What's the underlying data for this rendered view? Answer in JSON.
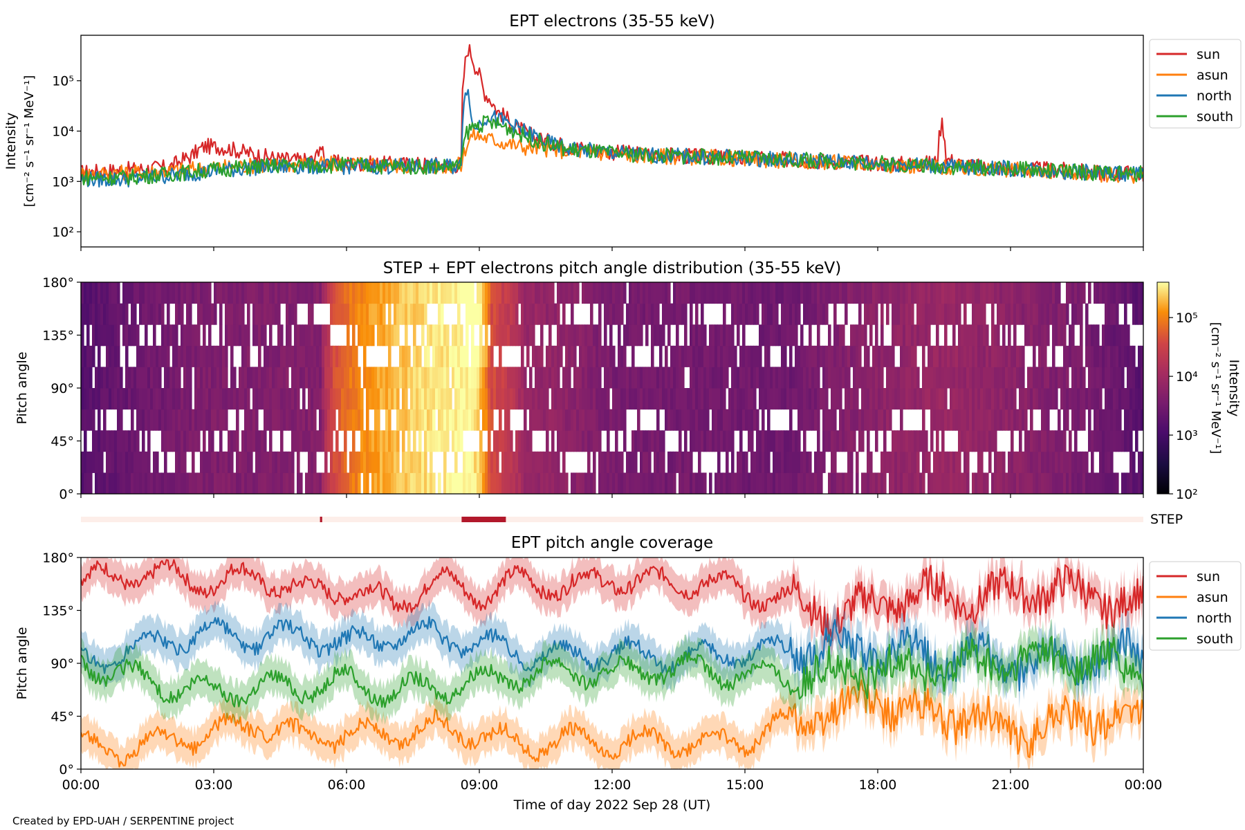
{
  "footer": "Created by EPD-UAH / SERPENTINE project",
  "colors": {
    "sun": "#d62728",
    "asun": "#ff7f0e",
    "north": "#1f77b4",
    "south": "#2ca02c",
    "step_bar": "#b2182b",
    "step_bar_bg": "#fdeee9"
  },
  "chart_data": [
    {
      "type": "line",
      "title": "EPT electrons (35-55 keV)",
      "ylabel_line1": "Intensity",
      "ylabel_line2": "[cm⁻² s⁻¹ sr⁻¹ MeV⁻¹]",
      "yscale": "log",
      "ylim": [
        50,
        800000
      ],
      "yticks": [
        100,
        1000,
        10000,
        100000
      ],
      "yticklabels": [
        "10²",
        "10³",
        "10⁴",
        "10⁵"
      ],
      "xlim_hours": [
        0,
        24
      ],
      "legend_position": "outside right",
      "series": [
        {
          "name": "sun",
          "key": "sun",
          "points": [
            [
              0,
              1500
            ],
            [
              0.5,
              1600
            ],
            [
              1,
              1700
            ],
            [
              1.5,
              1800
            ],
            [
              2,
              1900
            ],
            [
              2.5,
              3200
            ],
            [
              2.8,
              5000
            ],
            [
              3.2,
              4800
            ],
            [
              3.6,
              4000
            ],
            [
              4,
              3300
            ],
            [
              4.5,
              2800
            ],
            [
              5,
              2600
            ],
            [
              5.3,
              2700
            ],
            [
              5.4,
              5500
            ],
            [
              5.5,
              2400
            ],
            [
              6,
              2300
            ],
            [
              7,
              2200
            ],
            [
              8,
              2200
            ],
            [
              8.5,
              2100
            ],
            [
              8.6,
              2300
            ],
            [
              8.65,
              120000
            ],
            [
              8.75,
              450000
            ],
            [
              8.9,
              200000
            ],
            [
              9.1,
              60000
            ],
            [
              9.4,
              25000
            ],
            [
              9.8,
              12000
            ],
            [
              10.3,
              7000
            ],
            [
              11,
              5000
            ],
            [
              12,
              3800
            ],
            [
              13,
              3400
            ],
            [
              14,
              3100
            ],
            [
              15,
              2900
            ],
            [
              16,
              2700
            ],
            [
              17,
              2500
            ],
            [
              18,
              2300
            ],
            [
              19,
              2200
            ],
            [
              19.35,
              2500
            ],
            [
              19.45,
              15000
            ],
            [
              19.55,
              2800
            ],
            [
              20,
              2000
            ],
            [
              21,
              1800
            ],
            [
              22,
              1700
            ],
            [
              23,
              1500
            ],
            [
              24,
              1400
            ]
          ]
        },
        {
          "name": "asun",
          "key": "asun",
          "points": [
            [
              0,
              1400
            ],
            [
              1,
              1500
            ],
            [
              2,
              1600
            ],
            [
              3,
              1900
            ],
            [
              4,
              2100
            ],
            [
              5,
              2200
            ],
            [
              6,
              2200
            ],
            [
              7,
              2100
            ],
            [
              8,
              2000
            ],
            [
              8.6,
              2100
            ],
            [
              8.7,
              5000
            ],
            [
              8.85,
              8500
            ],
            [
              9.1,
              7500
            ],
            [
              9.5,
              6000
            ],
            [
              10,
              4800
            ],
            [
              11,
              4000
            ],
            [
              12,
              3500
            ],
            [
              13,
              3200
            ],
            [
              14,
              3000
            ],
            [
              15,
              2800
            ],
            [
              16,
              2600
            ],
            [
              17,
              2400
            ],
            [
              18,
              2200
            ],
            [
              19,
              2000
            ],
            [
              20,
              1800
            ],
            [
              21,
              1700
            ],
            [
              22,
              1600
            ],
            [
              23,
              1400
            ],
            [
              24,
              1300
            ]
          ]
        },
        {
          "name": "north",
          "key": "north",
          "points": [
            [
              0,
              1100
            ],
            [
              1,
              1100
            ],
            [
              2,
              1300
            ],
            [
              3,
              1600
            ],
            [
              4,
              1900
            ],
            [
              5,
              2000
            ],
            [
              6,
              2000
            ],
            [
              7,
              2000
            ],
            [
              8,
              2000
            ],
            [
              8.6,
              2000
            ],
            [
              8.7,
              80000
            ],
            [
              8.85,
              10000
            ],
            [
              9.2,
              20000
            ],
            [
              9.6,
              15000
            ],
            [
              10,
              10000
            ],
            [
              10.5,
              6000
            ],
            [
              11,
              4500
            ],
            [
              12,
              3700
            ],
            [
              13,
              3300
            ],
            [
              14,
              3100
            ],
            [
              15,
              2900
            ],
            [
              16,
              2700
            ],
            [
              17,
              2500
            ],
            [
              18,
              2300
            ],
            [
              19,
              2100
            ],
            [
              20,
              1900
            ],
            [
              21,
              1800
            ],
            [
              22,
              1600
            ],
            [
              23,
              1500
            ],
            [
              24,
              1400
            ]
          ]
        },
        {
          "name": "south",
          "key": "south",
          "points": [
            [
              0,
              1200
            ],
            [
              1,
              1200
            ],
            [
              2,
              1400
            ],
            [
              3,
              1700
            ],
            [
              4,
              2000
            ],
            [
              5,
              2100
            ],
            [
              6,
              2100
            ],
            [
              7,
              2000
            ],
            [
              8,
              2000
            ],
            [
              8.6,
              2000
            ],
            [
              8.7,
              9000
            ],
            [
              8.85,
              12000
            ],
            [
              9.2,
              15000
            ],
            [
              9.6,
              12000
            ],
            [
              10,
              8000
            ],
            [
              10.5,
              5500
            ],
            [
              11,
              4300
            ],
            [
              12,
              3600
            ],
            [
              13,
              3300
            ],
            [
              14,
              3100
            ],
            [
              15,
              2900
            ],
            [
              16,
              2700
            ],
            [
              17,
              2500
            ],
            [
              18,
              2300
            ],
            [
              19,
              2100
            ],
            [
              20,
              1900
            ],
            [
              21,
              1800
            ],
            [
              22,
              1600
            ],
            [
              23,
              1500
            ],
            [
              24,
              1400
            ]
          ]
        }
      ]
    },
    {
      "type": "heatmap",
      "title": "STEP + EPT electrons pitch angle distribution (35-55 keV)",
      "ylabel": "Pitch angle",
      "ylim_deg": [
        0,
        180
      ],
      "yticklabels": [
        "0°",
        "45°",
        "90°",
        "135°",
        "180°"
      ],
      "xlim_hours": [
        0,
        24
      ],
      "colorbar": {
        "label_line1": "Intensity",
        "label_line2": "[cm⁻² s⁻¹ sr⁻¹ MeV⁻¹]",
        "scale": "log",
        "range": [
          100,
          400000
        ],
        "ticklabels": [
          "10²",
          "10³",
          "10⁴",
          "10⁵"
        ],
        "colormap": "inferno"
      },
      "description_points": [
        [
          0,
          1500
        ],
        [
          2.8,
          4000
        ],
        [
          5.4,
          4500
        ],
        [
          8.75,
          400000
        ],
        [
          9.2,
          40000
        ],
        [
          10,
          8000
        ],
        [
          12,
          3500
        ],
        [
          16,
          2700
        ],
        [
          19.45,
          8000
        ],
        [
          24,
          1400
        ]
      ]
    },
    {
      "type": "bar",
      "label": "STEP",
      "intervals_hours": [
        [
          5.4,
          5.45
        ],
        [
          8.6,
          9.6
        ]
      ]
    },
    {
      "type": "line",
      "title": "EPT pitch angle coverage",
      "ylabel": "Pitch angle",
      "ylim_deg": [
        0,
        180
      ],
      "yticklabels": [
        "0°",
        "45°",
        "90°",
        "135°",
        "180°"
      ],
      "xlim_hours": [
        0,
        24
      ],
      "xticklabels": [
        "00:00",
        "03:00",
        "06:00",
        "09:00",
        "12:00",
        "15:00",
        "18:00",
        "21:00",
        "00:00"
      ],
      "xlabel": "Time of day 2022 Sep 28 (UT)",
      "legend_position": "outside right",
      "shaded_band_deg": 15,
      "series": [
        {
          "name": "sun",
          "key": "sun",
          "points": [
            [
              0,
              160
            ],
            [
              1,
              165
            ],
            [
              2,
              165
            ],
            [
              3,
              158
            ],
            [
              4,
              165
            ],
            [
              5,
              150
            ],
            [
              6,
              155
            ],
            [
              7,
              140
            ],
            [
              8,
              160
            ],
            [
              9,
              150
            ],
            [
              10,
              160
            ],
            [
              11,
              155
            ],
            [
              12,
              162
            ],
            [
              13,
              158
            ],
            [
              14,
              160
            ],
            [
              15,
              150
            ],
            [
              16,
              145
            ],
            [
              17,
              130
            ],
            [
              18,
              140
            ],
            [
              19,
              150
            ],
            [
              20,
              145
            ],
            [
              21,
              150
            ],
            [
              22,
              155
            ],
            [
              23,
              145
            ],
            [
              24,
              140
            ]
          ]
        },
        {
          "name": "asun",
          "key": "asun",
          "points": [
            [
              0,
              20
            ],
            [
              1,
              15
            ],
            [
              2,
              25
            ],
            [
              3,
              30
            ],
            [
              4,
              40
            ],
            [
              5,
              25
            ],
            [
              6,
              30
            ],
            [
              7,
              30
            ],
            [
              8,
              35
            ],
            [
              9,
              30
            ],
            [
              10,
              20
            ],
            [
              11,
              25
            ],
            [
              12,
              20
            ],
            [
              13,
              25
            ],
            [
              14,
              20
            ],
            [
              15,
              25
            ],
            [
              16,
              40
            ],
            [
              17,
              50
            ],
            [
              18,
              60
            ],
            [
              19,
              45
            ],
            [
              20,
              45
            ],
            [
              21,
              30
            ],
            [
              22,
              40
            ],
            [
              23,
              45
            ],
            [
              24,
              40
            ]
          ]
        },
        {
          "name": "north",
          "key": "north",
          "points": [
            [
              0,
              90
            ],
            [
              1,
              100
            ],
            [
              2,
              110
            ],
            [
              3,
              115
            ],
            [
              4,
              110
            ],
            [
              5,
              115
            ],
            [
              6,
              105
            ],
            [
              7,
              115
            ],
            [
              8,
              115
            ],
            [
              9,
              105
            ],
            [
              10,
              100
            ],
            [
              11,
              95
            ],
            [
              12,
              100
            ],
            [
              13,
              95
            ],
            [
              14,
              95
            ],
            [
              15,
              100
            ],
            [
              16,
              100
            ],
            [
              17,
              105
            ],
            [
              18,
              100
            ],
            [
              19,
              95
            ],
            [
              20,
              95
            ],
            [
              21,
              90
            ],
            [
              22,
              90
            ],
            [
              23,
              95
            ],
            [
              24,
              100
            ]
          ]
        },
        {
          "name": "south",
          "key": "south",
          "points": [
            [
              0,
              90
            ],
            [
              1,
              80
            ],
            [
              2,
              70
            ],
            [
              3,
              65
            ],
            [
              4,
              70
            ],
            [
              5,
              70
            ],
            [
              6,
              75
            ],
            [
              7,
              65
            ],
            [
              8,
              70
            ],
            [
              9,
              75
            ],
            [
              10,
              80
            ],
            [
              11,
              85
            ],
            [
              12,
              80
            ],
            [
              13,
              85
            ],
            [
              14,
              85
            ],
            [
              15,
              80
            ],
            [
              16,
              80
            ],
            [
              17,
              80
            ],
            [
              18,
              85
            ],
            [
              19,
              85
            ],
            [
              20,
              90
            ],
            [
              21,
              90
            ],
            [
              22,
              95
            ],
            [
              23,
              90
            ],
            [
              24,
              85
            ]
          ]
        }
      ]
    }
  ]
}
